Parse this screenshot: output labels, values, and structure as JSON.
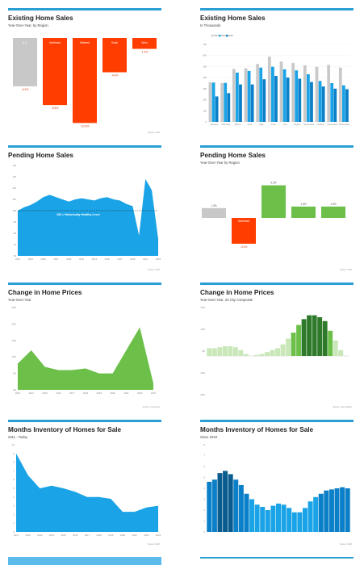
{
  "panels": [
    {
      "title": "Existing Home Sales",
      "subtitle": "Year-Over-Year, by Region",
      "source": "Source: NAR",
      "chart_data": {
        "type": "bar",
        "categories": [
          "U.S.",
          "Northeast",
          "Midwest",
          "South",
          "West"
        ],
        "values": [
          -6.2,
          -8.6,
          -10.9,
          -4.4,
          -1.4
        ],
        "data_labels": [
          "-6.2%",
          "-8.6%",
          "-10.9%",
          "-4.4%",
          "-1.4%"
        ],
        "ylim": [
          -12,
          0
        ],
        "colors": [
          "#c8c8c8",
          "#ff3d00",
          "#ff3d00",
          "#ff3d00",
          "#ff3d00"
        ]
      }
    },
    {
      "title": "Existing Home Sales",
      "subtitle": "In Thousands",
      "chart_data": {
        "type": "bar",
        "categories": [
          "January",
          "February",
          "March",
          "April",
          "May",
          "June",
          "July",
          "August",
          "September",
          "October",
          "November",
          "December"
        ],
        "legend_position": "top",
        "series": [
          {
            "name": "2021",
            "color": "#c9c9c9",
            "values": [
              357,
              350,
              478,
              485,
              523,
              590,
              545,
              532,
              512,
              497,
              515,
              490
            ]
          },
          {
            "name": "2022",
            "color": "#1aa3e6",
            "values": [
              355,
              352,
              445,
              460,
              490,
              498,
              475,
              465,
              430,
              370,
              350,
              330
            ]
          },
          {
            "name": "2023",
            "color": "#0b7fc7",
            "values": [
              230,
              260,
              338,
              338,
              385,
              415,
              400,
              390,
              360,
              320,
              300,
              295
            ]
          }
        ],
        "ylim": [
          0,
          700
        ],
        "yticks": [
          "0",
          "100",
          "200",
          "300",
          "400",
          "500",
          "600",
          "700"
        ]
      }
    },
    {
      "title": "Pending Home Sales",
      "subtitle": "",
      "source": "Source: NAR",
      "annotation": "100 = Historically Healthy Level",
      "chart_data": {
        "type": "area",
        "color": "#1aa3e6",
        "reference_line": 100,
        "ylim": [
          60,
          140
        ],
        "yticks": [
          "60",
          "70",
          "80",
          "90",
          "100",
          "110",
          "120",
          "130",
          "140"
        ],
        "x": [
          "2001",
          "2002",
          "2003",
          "2004",
          "2005",
          "2006",
          "2007",
          "2008",
          "2009",
          "2010",
          "2011",
          "2012",
          "2013",
          "2014",
          "2015",
          "2016",
          "2017",
          "2018",
          "2019",
          "2020",
          "2021",
          "2022",
          "2023"
        ],
        "values": [
          100,
          103,
          105,
          108,
          112,
          114,
          112,
          110,
          108,
          110,
          111,
          110,
          109,
          111,
          112,
          110,
          109,
          106,
          104,
          78,
          128,
          118,
          75
        ],
        "xticks": [
          "2001",
          "2003",
          "2005",
          "2007",
          "2009",
          "2011",
          "2013",
          "2015",
          "2017",
          "2019",
          "2021",
          "2023"
        ]
      }
    },
    {
      "title": "Pending Home Sales",
      "subtitle": "Year-Over-Year by Region",
      "source": "Source: NAR",
      "chart_data": {
        "type": "bar",
        "categories": [
          "U.S.",
          "Northeast",
          "Midwest",
          "South",
          "West"
        ],
        "values": [
          1.3,
          -3.4,
          4.3,
          1.5,
          1.5
        ],
        "data_labels": [
          "1.3%",
          "-3.4%",
          "4.3%",
          "1.5%",
          "1.5%"
        ],
        "ylim": [
          -5,
          5
        ],
        "colors": [
          "#c8c8c8",
          "#ff3d00",
          "#6cc04a",
          "#6cc04a",
          "#6cc04a"
        ]
      }
    },
    {
      "title": "Change in Home Prices",
      "subtitle": "Year-Over-Year",
      "source": "Source: CoreLogic",
      "chart_data": {
        "type": "area",
        "color": "#6cc04a",
        "ylim": [
          0,
          25
        ],
        "yticks": [
          "0%",
          "5%",
          "10%",
          "15%",
          "20%",
          "25%"
        ],
        "x": [
          "2013",
          "2014",
          "2015",
          "2016",
          "2017",
          "2018",
          "2019",
          "2020",
          "2021",
          "2022",
          "2023"
        ],
        "values": [
          8,
          12,
          7,
          6,
          6,
          6.5,
          5,
          5,
          12,
          19,
          2
        ],
        "xticks": [
          "2013",
          "2014",
          "2015",
          "2016",
          "2017",
          "2018",
          "2019",
          "2020",
          "2021",
          "2022",
          "2023"
        ]
      }
    },
    {
      "title": "Change in Home Prices",
      "subtitle": "Year-Over-Year, 20 City Composite",
      "source": "Source: Case-Shiller",
      "chart_data": {
        "type": "bar",
        "color_light": "#c9e7b8",
        "color_mid": "#6cc04a",
        "color_dark": "#2f7a2a",
        "ylim": [
          -20,
          25
        ],
        "yticks": [
          "-20%",
          "-10%",
          "0%",
          "10%",
          "20%"
        ],
        "values": [
          4,
          4,
          4.5,
          5,
          5,
          4.5,
          3,
          1,
          0,
          0.5,
          1,
          2,
          3,
          4,
          6,
          9,
          12,
          16,
          19,
          21,
          21,
          20,
          18,
          13,
          8,
          3,
          0
        ]
      }
    },
    {
      "title": "Months Inventory of Homes for Sale",
      "subtitle": "2011 - Today",
      "source": "Source: NAR",
      "chart_data": {
        "type": "area",
        "color": "#1aa3e6",
        "ylim": [
          0,
          10
        ],
        "yticks": [
          "0",
          "1",
          "2",
          "3",
          "4",
          "5",
          "6",
          "7",
          "8",
          "9",
          "10"
        ],
        "x": [
          "2011",
          "2012",
          "2013",
          "2014",
          "2015",
          "2016",
          "2017",
          "2018",
          "2019",
          "2020",
          "2021",
          "2022",
          "2023"
        ],
        "values": [
          9,
          6.5,
          5,
          5.3,
          5,
          4.6,
          4,
          4,
          3.8,
          2.3,
          2.3,
          2.8,
          3
        ],
        "xticks": [
          "2011",
          "2012",
          "2013",
          "2014",
          "2015",
          "2016",
          "2017",
          "2018",
          "2019",
          "2020",
          "2021",
          "2022",
          "2023"
        ]
      }
    },
    {
      "title": "Months Inventory of Homes for Sale",
      "subtitle": "Since 2019",
      "source": "Source: NAR",
      "chart_data": {
        "type": "bar",
        "color": "#1aa3e6",
        "ylim": [
          0,
          8
        ],
        "yticks": [
          "0",
          "1",
          "2",
          "3",
          "4",
          "5",
          "6",
          "7",
          "8"
        ],
        "values": [
          4.6,
          4.8,
          5.4,
          5.6,
          5.3,
          4.8,
          4.3,
          3.5,
          3.0,
          2.5,
          2.3,
          2.0,
          2.4,
          2.6,
          2.5,
          2.2,
          1.8,
          1.8,
          2.2,
          2.8,
          3.2,
          3.5,
          3.8,
          3.9,
          4.0,
          4.1,
          4.0
        ]
      }
    }
  ]
}
